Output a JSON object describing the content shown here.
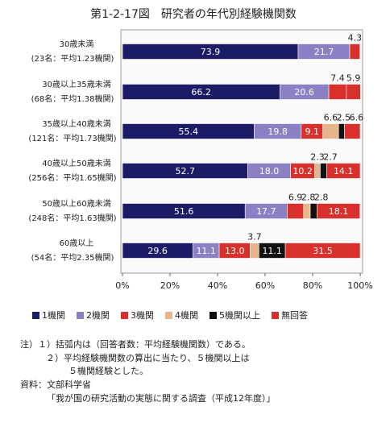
{
  "chart_data": {
    "type": "stacked-bar-horizontal",
    "title": "第1-2-17図　研究者の年代別経験機関数",
    "categories": [
      [
        "30歳未満",
        "(23名：平均1.23機関)"
      ],
      [
        "30歳以上35歳未満",
        "(68名：平均1.38機関)"
      ],
      [
        "35歳以上40歳未満",
        "(121名：平均1.73機関)"
      ],
      [
        "40歳以上50歳未満",
        "(256名：平均1.65機関)"
      ],
      [
        "50歳以上60歳未満",
        "(248名：平均1.63機関)"
      ],
      [
        "60歳以上",
        "(54名：平均2.35機関)"
      ]
    ],
    "series": [
      {
        "name": "1機関",
        "color": "#1c1c66",
        "values": [
          73.9,
          66.2,
          55.4,
          52.7,
          51.6,
          29.6
        ],
        "value_labels": [
          "73.9",
          "66.2",
          "55.4",
          "52.7",
          "51.6",
          "29.6"
        ]
      },
      {
        "name": "2機関",
        "color": "#8c80c4",
        "values": [
          21.7,
          20.6,
          19.8,
          18.0,
          17.7,
          11.1
        ],
        "value_labels": [
          "21.7",
          "20.6",
          "19.8",
          "18.0",
          "17.7",
          "11.1"
        ]
      },
      {
        "name": "3機関",
        "color": "#d8302c",
        "values": [
          null,
          7.4,
          9.1,
          10.2,
          6.9,
          13.0
        ],
        "value_labels": [
          null,
          "7.4",
          "9.1",
          "10.2",
          "6.9",
          "13.0"
        ]
      },
      {
        "name": "4機関",
        "color": "#e8b48a",
        "values": [
          null,
          null,
          6.6,
          2.3,
          2.8,
          3.7
        ],
        "value_labels": [
          null,
          null,
          "6.6",
          "2.3",
          "2.8",
          "3.7"
        ]
      },
      {
        "name": "5機関以上",
        "color": "#111111",
        "values": [
          null,
          null,
          2.5,
          2.7,
          2.8,
          11.1
        ],
        "value_labels": [
          null,
          null,
          "2.5",
          "2.7",
          "2.8",
          "11.1"
        ]
      },
      {
        "name": "無回答",
        "color": "#d8302c",
        "values": [
          4.3,
          5.9,
          6.6,
          14.1,
          18.1,
          31.5
        ],
        "value_labels": [
          "4.3",
          "5.9",
          "6.6",
          "14.1",
          "18.1",
          "31.5"
        ]
      }
    ],
    "xlim": [
      0,
      100
    ],
    "xticks": [
      {
        "value": 0,
        "label": "0%"
      },
      {
        "value": 20,
        "label": "20%"
      },
      {
        "value": 40,
        "label": "40%"
      },
      {
        "value": 60,
        "label": "60%"
      },
      {
        "value": 80,
        "label": "80%"
      },
      {
        "value": 100,
        "label": "100%"
      }
    ],
    "notes": [
      "注）１）括弧内は（回答者数：平均経験機関数）である。",
      "２）平均経験機関数の算出に当たり、５機関以上は",
      "５機関経験とした。",
      "資料：文部科学省",
      "「我が国の研究活動の実態に関する調査（平成12年度）」"
    ]
  }
}
